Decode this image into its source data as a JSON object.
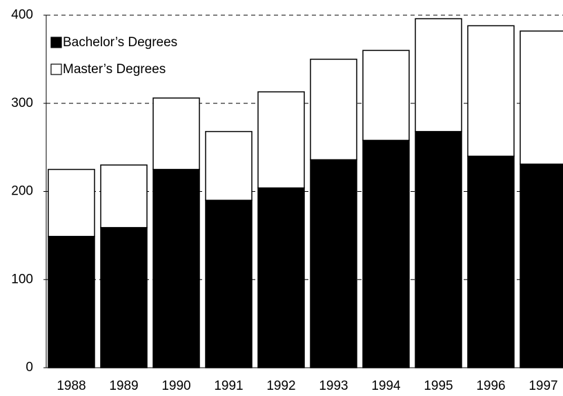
{
  "chart_data": {
    "type": "stacked-bar",
    "categories": [
      "1988",
      "1989",
      "1990",
      "1991",
      "1992",
      "1993",
      "1994",
      "1995",
      "1996",
      "1997"
    ],
    "series": [
      {
        "name": "Bachelor’s Degrees",
        "color": "#000000",
        "values": [
          149,
          159,
          225,
          190,
          204,
          236,
          258,
          268,
          240,
          231
        ]
      },
      {
        "name": "Master’s Degrees",
        "color": "#ffffff",
        "values": [
          76,
          71,
          81,
          78,
          109,
          114,
          102,
          128,
          148,
          151
        ]
      }
    ],
    "ylim": [
      0,
      400
    ],
    "yticks": [
      0,
      100,
      200,
      300,
      400
    ],
    "grid": true,
    "legend": "top-left"
  }
}
